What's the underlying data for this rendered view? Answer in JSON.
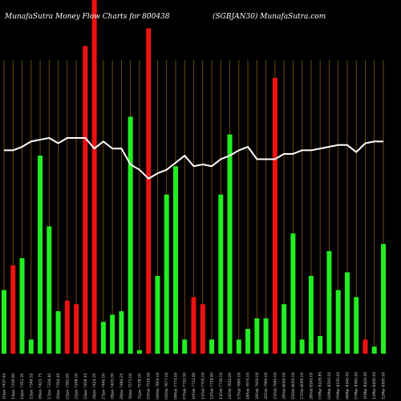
{
  "header": {
    "left": "MunafaSutra  Money Flow  Charts for 800438",
    "right": "(SGBJAN30) MunafaSutra.com"
  },
  "colors": {
    "background": "#000000",
    "grid": "#8a5a14",
    "up": "#22ee22",
    "down": "#ee1111",
    "line": "#ffffff",
    "text": "#ffffff"
  },
  "chart_data": {
    "type": "bar",
    "categories": [
      "10Jan 7437.45",
      "13Jan 7339.80",
      "14Jan 7351.35",
      "15Jan 7349.55",
      "16Jan 7421.75",
      "17Jan 7334.40",
      "20Jan 7354.45",
      "21Jan 7361.65",
      "22Jan 7298.00",
      "23Jan 7458.15",
      "24Jan 7424.20",
      "27Jan 7440.00",
      "28Jan 7405.00",
      "29Jan 7484.25",
      "30Jan 7571.00",
      "31Jan 7578.00",
      "03Feb 7519.95",
      "04Feb 7600.00",
      "05Feb 7677.00",
      "06Feb 7775.00",
      "07Feb 7710.90",
      "10Feb 7712.85",
      "11Feb 7700.00",
      "12Feb 7718.80",
      "13Feb 7730.00",
      "14Feb 7810.60",
      "17Feb 7860.00",
      "18Feb 7875.00",
      "19Feb 7900.00",
      "20Feb 7960.00",
      "21Feb 7940.00",
      "24Feb 8000.00",
      "25Feb 8050.00",
      "27Feb 8095.00",
      "28Feb 8145.00",
      "03Mar 8228.85",
      "04Mar 8200.00",
      "05Mar 8335.00",
      "06Mar 8340.00",
      "07Mar 8360.00",
      "10Mar 8425.00",
      "11Mar 8450.00",
      "12Mar 8500.00"
    ],
    "series": [
      {
        "kind": "bar",
        "values": [
          18,
          25,
          27,
          4,
          56,
          36,
          12,
          15,
          14,
          87,
          100,
          9,
          11,
          12,
          67,
          1,
          92,
          22,
          45,
          53,
          4,
          16,
          14,
          4,
          45,
          62,
          4,
          7,
          10,
          10,
          78,
          14,
          34,
          4,
          22,
          5,
          29,
          18,
          23,
          16,
          4,
          2,
          31
        ],
        "directions": [
          "up",
          "down",
          "up",
          "up",
          "up",
          "up",
          "up",
          "down",
          "down",
          "down",
          "down",
          "up",
          "up",
          "up",
          "up",
          "up",
          "down",
          "up",
          "up",
          "up",
          "up",
          "down",
          "down",
          "up",
          "up",
          "up",
          "up",
          "up",
          "up",
          "up",
          "down",
          "up",
          "up",
          "up",
          "up",
          "up",
          "up",
          "up",
          "up",
          "up",
          "down",
          "up",
          "up"
        ]
      },
      {
        "kind": "line",
        "values": [
          57.5,
          57.5,
          58.5,
          60,
          60.5,
          61,
          59.5,
          61,
          61,
          61,
          58,
          60,
          58,
          58,
          53.5,
          52,
          49.5,
          51,
          52,
          54,
          56,
          53,
          53.5,
          53,
          55,
          56,
          57.5,
          58.5,
          55,
          55,
          55,
          56.5,
          56.5,
          57.5,
          57.5,
          58,
          58.5,
          59,
          59,
          57,
          59.5,
          60,
          60
        ]
      }
    ],
    "ylim": [
      0,
      100
    ],
    "grid": true,
    "legend": "none"
  }
}
